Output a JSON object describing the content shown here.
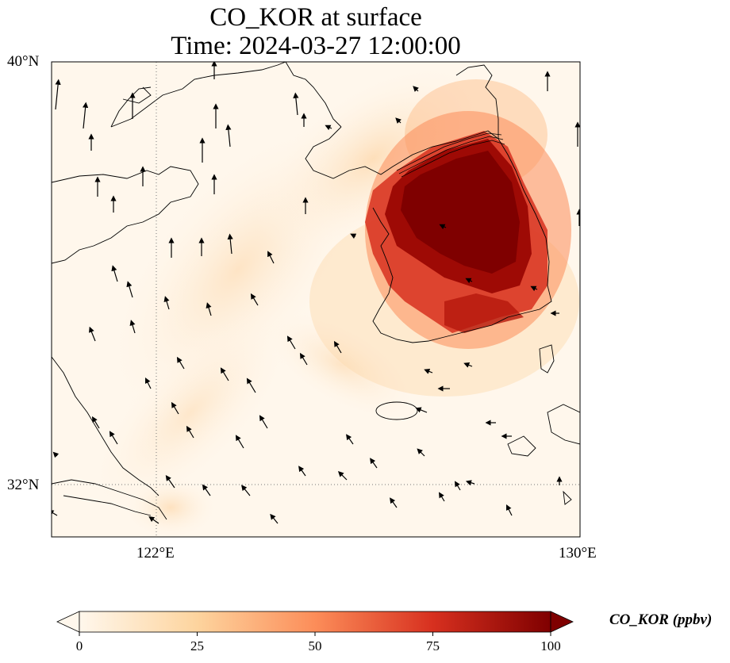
{
  "title": {
    "line1": "CO_KOR at surface",
    "line2": "Time: 2024-03-27 12:00:00"
  },
  "axes": {
    "lat_labels": [
      "40°N",
      "32°N"
    ],
    "lon_labels": [
      "122°E",
      "130°E"
    ]
  },
  "map_extent": {
    "lon_min": 120,
    "lon_max": 130,
    "lat_min": 31,
    "lat_max": 40
  },
  "gridlines": {
    "lon": [
      122,
      130
    ],
    "lat": [
      32,
      40
    ],
    "style": "dotted"
  },
  "colorbar": {
    "label": "CO_KOR (ppbv)",
    "ticks": [
      "0",
      "25",
      "50",
      "75",
      "100"
    ],
    "min": 0,
    "max": 100,
    "extend": "both",
    "colormap": "OrRd"
  },
  "colors": {
    "low": "#fff7ec",
    "mid": "#fdbb84",
    "high": "#d7301f",
    "max": "#7f0000"
  },
  "chart_data": {
    "type": "heatmap",
    "title": "CO_KOR at surface\nTime: 2024-03-27 12:00:00",
    "variable": "CO_KOR",
    "units": "ppbv",
    "vmin": 0,
    "vmax": 100,
    "features": [
      "coastlines",
      "wind vectors"
    ],
    "hotspot": {
      "region": "Korean Peninsula",
      "approx_center": [
        127.7,
        36.5
      ],
      "value": 100
    },
    "plume": {
      "direction": "southwest over Yellow Sea",
      "approx_value": 20
    }
  }
}
